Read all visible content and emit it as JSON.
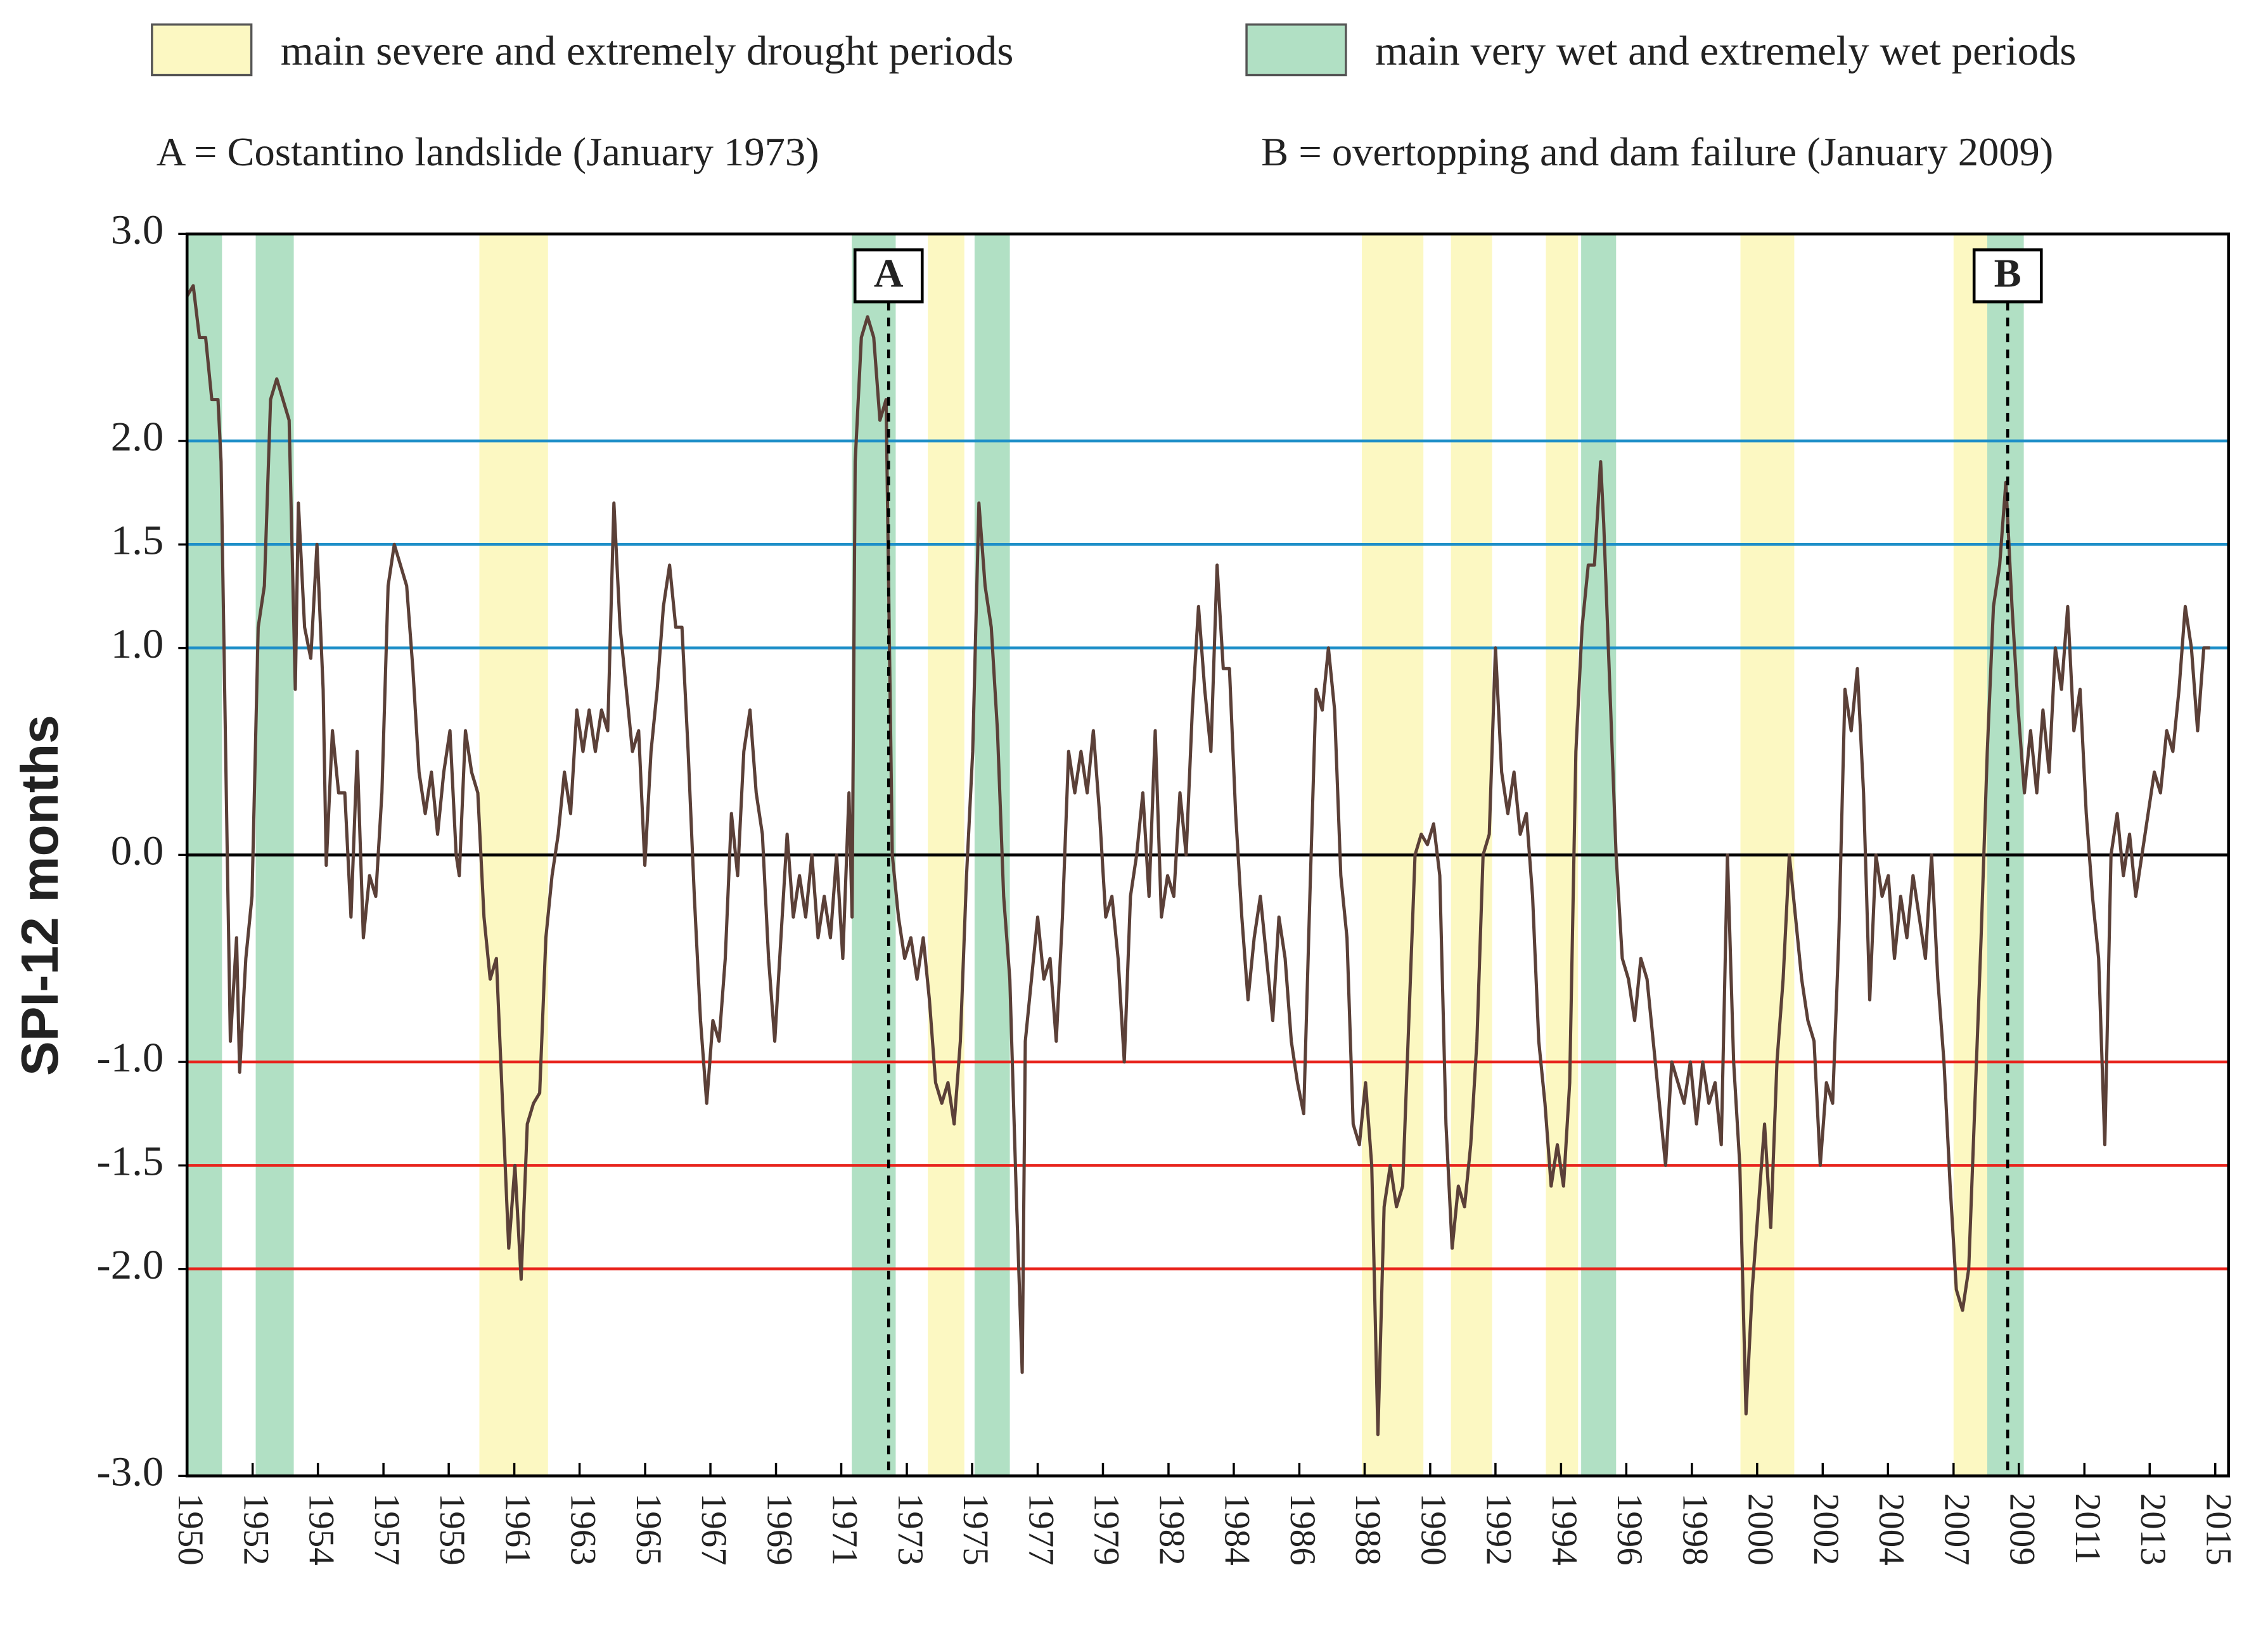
{
  "chart_data": {
    "type": "line",
    "ylabel": "SPI-12 months",
    "color": "#5b4038",
    "xlim": [
      1950,
      2016
    ],
    "ylim": [
      -3,
      3
    ],
    "yticks": [
      {
        "value": -3,
        "label": "-3.0"
      },
      {
        "value": -2,
        "label": "-2.0"
      },
      -1.5,
      {
        "value": -1,
        "label": "-1.0"
      },
      {
        "value": 0,
        "label": "0.0"
      },
      {
        "value": 1,
        "label": "1.0"
      },
      1.5,
      {
        "value": 2,
        "label": "2.0"
      },
      {
        "value": 3,
        "label": "3.0"
      }
    ],
    "xticks": [
      {
        "value": 1950,
        "label": "1950"
      },
      {
        "value": 1952.12,
        "label": "1952"
      },
      {
        "value": 1954.23,
        "label": "1954"
      },
      {
        "value": 1956.35,
        "label": "1957"
      },
      {
        "value": 1958.46,
        "label": "1959"
      },
      {
        "value": 1960.58,
        "label": "1961"
      },
      {
        "value": 1962.69,
        "label": "1963"
      },
      {
        "value": 1964.81,
        "label": "1965"
      },
      {
        "value": 1966.92,
        "label": "1967"
      },
      {
        "value": 1969.04,
        "label": "1969"
      },
      {
        "value": 1971.15,
        "label": "1971"
      },
      {
        "value": 1973.27,
        "label": "1973"
      },
      {
        "value": 1975.38,
        "label": "1975"
      },
      {
        "value": 1977.5,
        "label": "1977"
      },
      {
        "value": 1979.61,
        "label": "1979"
      },
      {
        "value": 1981.73,
        "label": "1982"
      },
      {
        "value": 1983.84,
        "label": "1984"
      },
      {
        "value": 1985.96,
        "label": "1986"
      },
      {
        "value": 1988.07,
        "label": "1988"
      },
      {
        "value": 1990.19,
        "label": "1990"
      },
      {
        "value": 1992.3,
        "label": "1992"
      },
      {
        "value": 1994.42,
        "label": "1994"
      },
      {
        "value": 1996.53,
        "label": "1996"
      },
      {
        "value": 1998.65,
        "label": "1998"
      },
      {
        "value": 2000.76,
        "label": "2000"
      },
      {
        "value": 2002.88,
        "label": "2002"
      },
      {
        "value": 2004.99,
        "label": "2004"
      },
      {
        "value": 2007.11,
        "label": "2007"
      },
      {
        "value": 2009.22,
        "label": "2009"
      },
      {
        "value": 2011.34,
        "label": "2011"
      },
      {
        "value": 2013.45,
        "label": "2013"
      },
      {
        "value": 2015.57,
        "label": "2015"
      }
    ],
    "wet_threshold_color": "#1e8fc8",
    "drought_threshold_color": "#e8231c",
    "zero_line_color": "#000000",
    "periods": [
      {
        "label": "main severe and extremely drought periods",
        "color": "#fcf8c2",
        "ranges": [
          [
            1959.45,
            1961.67
          ],
          [
            1973.95,
            1975.13
          ],
          [
            1987.98,
            1989.97
          ],
          [
            1990.86,
            1992.19
          ],
          [
            1993.93,
            1994.97
          ],
          [
            2000.22,
            2001.96
          ],
          [
            2007.11,
            2008.34
          ]
        ]
      },
      {
        "label": "main very wet and extremely wet periods",
        "color": "#b1e0c4",
        "ranges": [
          [
            1950.0,
            1951.13
          ],
          [
            1952.22,
            1953.45
          ],
          [
            1971.49,
            1972.91
          ],
          [
            1975.46,
            1976.6
          ],
          [
            1995.07,
            1996.2
          ],
          [
            2008.2,
            2009.38
          ]
        ]
      }
    ],
    "events": [
      {
        "marker": "A",
        "x": 1972.68,
        "label": "A = Costantino landslide (January 1973)"
      },
      {
        "marker": "B",
        "x": 2008.86,
        "label": "B = overtopping and dam failure  (January 2009)"
      }
    ],
    "x": [
      1950.0,
      1950.2,
      1950.4,
      1950.6,
      1950.8,
      1951.0,
      1951.1,
      1951.3,
      1951.4,
      1951.6,
      1951.7,
      1951.9,
      1952.1,
      1952.3,
      1952.5,
      1952.7,
      1952.9,
      1953.1,
      1953.3,
      1953.5,
      1953.6,
      1953.8,
      1954.0,
      1954.2,
      1954.4,
      1954.5,
      1954.7,
      1954.9,
      1955.1,
      1955.3,
      1955.5,
      1955.7,
      1955.9,
      1956.1,
      1956.3,
      1956.5,
      1956.7,
      1956.9,
      1957.1,
      1957.3,
      1957.5,
      1957.7,
      1957.9,
      1958.1,
      1958.3,
      1958.5,
      1958.7,
      1958.8,
      1959.0,
      1959.2,
      1959.4,
      1959.6,
      1959.8,
      1960.0,
      1960.2,
      1960.4,
      1960.6,
      1960.8,
      1961.0,
      1961.2,
      1961.4,
      1961.6,
      1961.8,
      1962.0,
      1962.2,
      1962.4,
      1962.6,
      1962.8,
      1963.0,
      1963.2,
      1963.4,
      1963.6,
      1963.8,
      1964.0,
      1964.2,
      1964.4,
      1964.6,
      1964.8,
      1965.0,
      1965.2,
      1965.4,
      1965.6,
      1965.8,
      1966.0,
      1966.2,
      1966.4,
      1966.6,
      1966.8,
      1967.0,
      1967.2,
      1967.4,
      1967.6,
      1967.8,
      1968.0,
      1968.2,
      1968.4,
      1968.6,
      1968.8,
      1969.0,
      1969.2,
      1969.4,
      1969.6,
      1969.8,
      1970.0,
      1970.2,
      1970.4,
      1970.6,
      1970.8,
      1971.0,
      1971.2,
      1971.4,
      1971.5,
      1971.6,
      1971.8,
      1972.0,
      1972.2,
      1972.4,
      1972.6,
      1972.8,
      1973.0,
      1973.2,
      1973.4,
      1973.6,
      1973.8,
      1974.0,
      1974.2,
      1974.4,
      1974.6,
      1974.8,
      1975.0,
      1975.2,
      1975.4,
      1975.6,
      1975.8,
      1976.0,
      1976.2,
      1976.4,
      1976.6,
      1976.8,
      1977.0,
      1977.1,
      1977.3,
      1977.5,
      1977.7,
      1977.9,
      1978.1,
      1978.3,
      1978.5,
      1978.7,
      1978.9,
      1979.1,
      1979.3,
      1979.5,
      1979.7,
      1979.9,
      1980.1,
      1980.3,
      1980.5,
      1980.7,
      1980.9,
      1981.1,
      1981.3,
      1981.5,
      1981.7,
      1981.9,
      1982.1,
      1982.3,
      1982.5,
      1982.7,
      1982.9,
      1983.1,
      1983.3,
      1983.5,
      1983.7,
      1983.9,
      1984.1,
      1984.3,
      1984.5,
      1984.7,
      1984.9,
      1985.1,
      1985.3,
      1985.5,
      1985.7,
      1985.9,
      1986.1,
      1986.3,
      1986.5,
      1986.7,
      1986.9,
      1987.1,
      1987.3,
      1987.5,
      1987.7,
      1987.9,
      1988.1,
      1988.3,
      1988.5,
      1988.7,
      1988.9,
      1989.1,
      1989.3,
      1989.5,
      1989.7,
      1989.9,
      1990.1,
      1990.3,
      1990.5,
      1990.7,
      1990.9,
      1991.1,
      1991.3,
      1991.5,
      1991.7,
      1991.9,
      1992.1,
      1992.3,
      1992.5,
      1992.7,
      1992.9,
      1993.1,
      1993.3,
      1993.5,
      1993.7,
      1993.9,
      1994.1,
      1994.3,
      1994.5,
      1994.7,
      1994.9,
      1995.1,
      1995.3,
      1995.5,
      1995.7,
      1995.8,
      1996.0,
      1996.2,
      1996.4,
      1996.6,
      1996.8,
      1997.0,
      1997.2,
      1997.4,
      1997.6,
      1997.8,
      1998.0,
      1998.2,
      1998.4,
      1998.6,
      1998.8,
      1999.0,
      1999.2,
      1999.4,
      1999.6,
      1999.8,
      2000.0,
      2000.2,
      2000.4,
      2000.6,
      2000.8,
      2001.0,
      2001.2,
      2001.4,
      2001.6,
      2001.8,
      2002.0,
      2002.2,
      2002.4,
      2002.6,
      2002.8,
      2003.0,
      2003.2,
      2003.4,
      2003.6,
      2003.8,
      2004.0,
      2004.2,
      2004.4,
      2004.6,
      2004.8,
      2005.0,
      2005.2,
      2005.4,
      2005.6,
      2005.8,
      2006.0,
      2006.2,
      2006.4,
      2006.6,
      2006.8,
      2007.0,
      2007.2,
      2007.4,
      2007.6,
      2007.8,
      2008.0,
      2008.2,
      2008.4,
      2008.6,
      2008.8,
      2009.0,
      2009.2,
      2009.4,
      2009.6,
      2009.8,
      2010.0,
      2010.2,
      2010.4,
      2010.6,
      2010.8,
      2011.0,
      2011.2,
      2011.4,
      2011.6,
      2011.8,
      2012.0,
      2012.2,
      2012.4,
      2012.6,
      2012.8,
      2013.0,
      2013.2,
      2013.4,
      2013.6,
      2013.8,
      2014.0,
      2014.2,
      2014.4,
      2014.6,
      2014.8,
      2015.0,
      2015.2,
      2015.4
    ],
    "values": [
      2.7,
      2.75,
      2.5,
      2.5,
      2.2,
      2.2,
      1.9,
      0.0,
      -0.9,
      -0.4,
      -1.05,
      -0.5,
      -0.2,
      1.1,
      1.3,
      2.2,
      2.3,
      2.2,
      2.1,
      0.8,
      1.7,
      1.1,
      0.95,
      1.5,
      0.8,
      -0.05,
      0.6,
      0.3,
      0.3,
      -0.3,
      0.5,
      -0.4,
      -0.1,
      -0.2,
      0.3,
      1.3,
      1.5,
      1.4,
      1.3,
      0.9,
      0.4,
      0.2,
      0.4,
      0.1,
      0.4,
      0.6,
      0.0,
      -0.1,
      0.6,
      0.4,
      0.3,
      -0.3,
      -0.6,
      -0.5,
      -1.2,
      -1.9,
      -1.5,
      -2.05,
      -1.3,
      -1.2,
      -1.15,
      -0.4,
      -0.1,
      0.1,
      0.4,
      0.2,
      0.7,
      0.5,
      0.7,
      0.5,
      0.7,
      0.6,
      1.7,
      1.1,
      0.8,
      0.5,
      0.6,
      -0.05,
      0.5,
      0.8,
      1.2,
      1.4,
      1.1,
      1.1,
      0.5,
      -0.2,
      -0.8,
      -1.2,
      -0.8,
      -0.9,
      -0.5,
      0.2,
      -0.1,
      0.5,
      0.7,
      0.3,
      0.1,
      -0.5,
      -0.9,
      -0.4,
      0.1,
      -0.3,
      -0.1,
      -0.3,
      0.0,
      -0.4,
      -0.2,
      -0.4,
      0.0,
      -0.5,
      0.3,
      -0.3,
      1.9,
      2.5,
      2.6,
      2.5,
      2.1,
      2.2,
      0.0,
      -0.3,
      -0.5,
      -0.4,
      -0.6,
      -0.4,
      -0.7,
      -1.1,
      -1.2,
      -1.1,
      -1.3,
      -0.9,
      -0.1,
      0.5,
      1.7,
      1.3,
      1.1,
      0.6,
      -0.2,
      -0.6,
      -1.6,
      -2.5,
      -0.9,
      -0.6,
      -0.3,
      -0.6,
      -0.5,
      -0.9,
      -0.3,
      0.5,
      0.3,
      0.5,
      0.3,
      0.6,
      0.2,
      -0.3,
      -0.2,
      -0.5,
      -1.0,
      -0.2,
      0.0,
      0.3,
      -0.2,
      0.6,
      -0.3,
      -0.1,
      -0.2,
      0.3,
      0.0,
      0.7,
      1.2,
      0.8,
      0.5,
      1.4,
      0.9,
      0.9,
      0.2,
      -0.3,
      -0.7,
      -0.4,
      -0.2,
      -0.5,
      -0.8,
      -0.3,
      -0.5,
      -0.9,
      -1.1,
      -1.25,
      -0.2,
      0.8,
      0.7,
      1.0,
      0.7,
      -0.1,
      -0.4,
      -1.3,
      -1.4,
      -1.1,
      -1.5,
      -2.8,
      -1.7,
      -1.5,
      -1.7,
      -1.6,
      -0.8,
      0.0,
      0.1,
      0.05,
      0.15,
      -0.1,
      -1.3,
      -1.9,
      -1.6,
      -1.7,
      -1.4,
      -0.9,
      0.0,
      0.1,
      1.0,
      0.4,
      0.2,
      0.4,
      0.1,
      0.2,
      -0.2,
      -0.9,
      -1.2,
      -1.6,
      -1.4,
      -1.6,
      -1.1,
      0.5,
      1.1,
      1.4,
      1.4,
      1.9,
      1.6,
      0.8,
      0.0,
      -0.5,
      -0.6,
      -0.8,
      -0.5,
      -0.6,
      -0.9,
      -1.2,
      -1.5,
      -1.0,
      -1.1,
      -1.2,
      -1.0,
      -1.3,
      -1.0,
      -1.2,
      -1.1,
      -1.4,
      0.0,
      -1.0,
      -1.5,
      -2.7,
      -2.1,
      -1.7,
      -1.3,
      -1.8,
      -1.0,
      -0.6,
      0.0,
      -0.3,
      -0.6,
      -0.8,
      -0.9,
      -1.5,
      -1.1,
      -1.2,
      -0.4,
      0.8,
      0.6,
      0.9,
      0.3,
      -0.7,
      0.0,
      -0.2,
      -0.1,
      -0.5,
      -0.2,
      -0.4,
      -0.1,
      -0.3,
      -0.5,
      0.0,
      -0.6,
      -1.0,
      -1.6,
      -2.1,
      -2.2,
      -2.0,
      -1.2,
      -0.4,
      0.5,
      1.2,
      1.4,
      1.8,
      1.2,
      0.7,
      0.3,
      0.6,
      0.3,
      0.7,
      0.4,
      1.0,
      0.8,
      1.2,
      0.6,
      0.8,
      0.2,
      -0.2,
      -0.5,
      -1.4,
      0.0,
      0.2,
      -0.1,
      0.1,
      -0.2,
      0.0,
      0.2,
      0.4,
      0.3,
      0.6,
      0.5,
      0.8,
      1.2,
      1.0,
      0.6,
      1.0,
      1.0
    ]
  }
}
